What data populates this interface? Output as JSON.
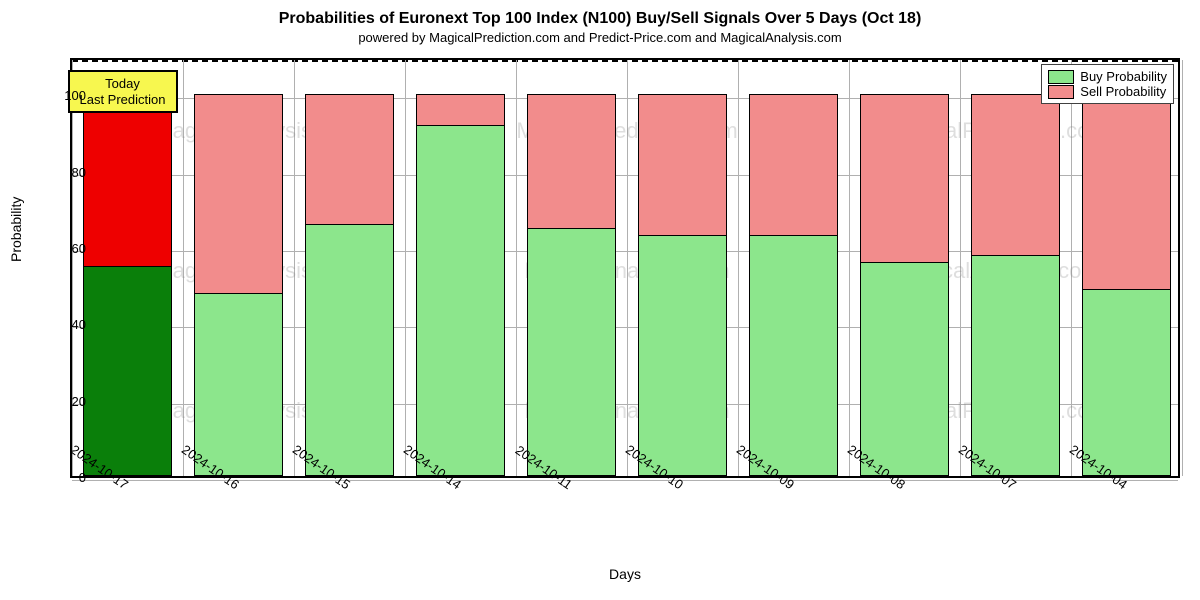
{
  "title": "Probabilities of Euronext Top 100 Index (N100) Buy/Sell Signals Over 5 Days (Oct 18)",
  "title_fontsize": 16,
  "title_fontweight": "bold",
  "subtitle": "powered by MagicalPrediction.com and Predict-Price.com and MagicalAnalysis.com",
  "subtitle_fontsize": 13,
  "subtitle_color": "#000000",
  "chart": {
    "type": "stacked-bar",
    "background_color": "#ffffff",
    "border_color": "#000000",
    "grid_color": "#b0b0b0",
    "grid_on": true,
    "ylabel": "Probability",
    "xlabel": "Days",
    "label_fontsize": 14,
    "tick_fontsize": 13,
    "xtick_rotation": 35,
    "ylim": [
      0,
      110
    ],
    "yticks": [
      0,
      20,
      40,
      60,
      80,
      100
    ],
    "bar_total": 100,
    "reference_line_value": 110,
    "reference_line_color": "#000000",
    "origin_line_value": 0,
    "categories": [
      "2024-10-17",
      "2024-10-16",
      "2024-10-15",
      "2024-10-14",
      "2024-10-11",
      "2024-10-10",
      "2024-10-09",
      "2024-10-08",
      "2024-10-07",
      "2024-10-04"
    ],
    "series": [
      {
        "name": "Buy Probability",
        "color_default": "#8ce68c",
        "stack_position": "bottom"
      },
      {
        "name": "Sell Probability",
        "color_default": "#f28c8c",
        "stack_position": "top"
      }
    ],
    "values": {
      "buy": [
        55,
        48,
        66,
        92,
        65,
        63,
        63,
        56,
        58,
        49
      ],
      "sell": [
        45,
        52,
        34,
        8,
        35,
        37,
        37,
        44,
        42,
        51
      ]
    },
    "bar_colors_override": {
      "0": {
        "buy": "#0a7f0a",
        "sell": "#ee0000"
      }
    },
    "bar_width": 0.8,
    "legend": {
      "position": "upper-right",
      "items": [
        {
          "label": "Buy Probability",
          "color": "#8ce68c"
        },
        {
          "label": "Sell Probability",
          "color": "#f28c8c"
        }
      ],
      "fontsize": 13
    },
    "annotation": {
      "text_line1": "Today",
      "text_line2": "Last Prediction",
      "background": "#f7f74f",
      "border_color": "#000000",
      "fontsize": 13,
      "anchor_bar_index": 0
    },
    "watermarks": [
      {
        "text": "MagicalAnalysis.com",
        "row": 0,
        "col": 0
      },
      {
        "text": "MagicalPrediction.com",
        "row": 0,
        "col": 1
      },
      {
        "text": "MagicalPrediction.com",
        "row": 0,
        "col": 2
      },
      {
        "text": "MagicalAnalysis.com",
        "row": 1,
        "col": 0
      },
      {
        "text": "MagicalAnalysis.com",
        "row": 1,
        "col": 1
      },
      {
        "text": "MagicalAnalysis.com",
        "row": 1,
        "col": 2
      },
      {
        "text": "MagicalAnalysis.com",
        "row": 2,
        "col": 0
      },
      {
        "text": "MagicalAnalysis.com",
        "row": 2,
        "col": 1
      },
      {
        "text": "MagicalPrediction.com",
        "row": 2,
        "col": 2
      }
    ],
    "watermark_fontsize": 22,
    "watermark_color": "#808080",
    "watermark_opacity": 0.25
  }
}
